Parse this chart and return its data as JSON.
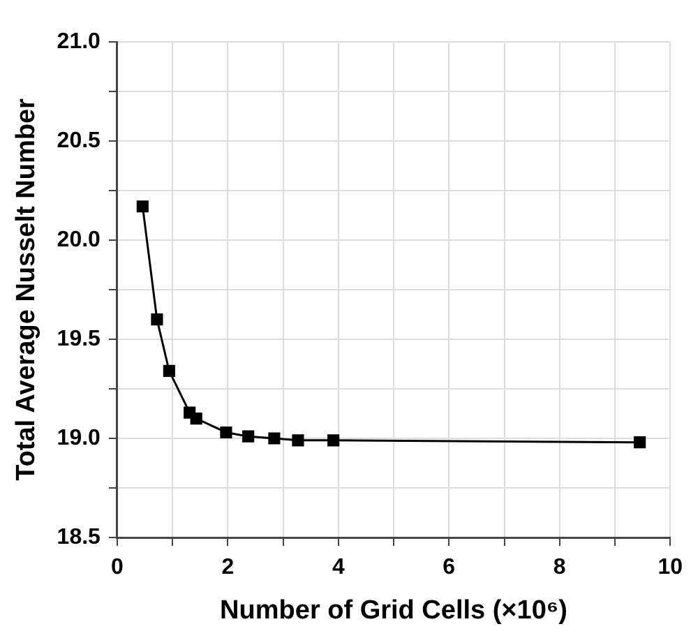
{
  "chart_data": {
    "type": "line",
    "xlabel": "Number of Grid Cells (×10⁶)",
    "ylabel": "Total Average Nusselt Number",
    "x": [
      0.46,
      0.72,
      0.94,
      1.31,
      1.43,
      1.97,
      2.37,
      2.84,
      3.27,
      3.91,
      9.45
    ],
    "series": [
      {
        "color": "#000000",
        "values": [
          20.17,
          19.6,
          19.34,
          19.13,
          19.1,
          19.03,
          19.01,
          19.0,
          18.99,
          18.99,
          18.98
        ]
      }
    ],
    "xlim": [
      0,
      10
    ],
    "ylim": [
      18.5,
      21
    ],
    "xticks": [
      0,
      {
        "value": 1,
        "label": null
      },
      2,
      {
        "value": 3,
        "label": null
      },
      4,
      {
        "value": 5,
        "label": null
      },
      6,
      {
        "value": 7,
        "label": null
      },
      8,
      {
        "value": 9,
        "label": null
      },
      10
    ],
    "yticks": [
      {
        "value": 18.5,
        "label": "18.5"
      },
      {
        "value": 18.75,
        "label": null
      },
      {
        "value": 19,
        "label": "19.0"
      },
      {
        "value": 19.25,
        "label": null
      },
      {
        "value": 19.5,
        "label": "19.5"
      },
      {
        "value": 19.75,
        "label": null
      },
      {
        "value": 20,
        "label": "20.0"
      },
      {
        "value": 20.25,
        "label": null
      },
      {
        "value": 20.5,
        "label": "20.5"
      },
      {
        "value": 20.75,
        "label": null
      },
      {
        "value": 21,
        "label": "21.0"
      }
    ],
    "grid": true,
    "marker": "square",
    "line_style": "solid",
    "legend": false
  }
}
